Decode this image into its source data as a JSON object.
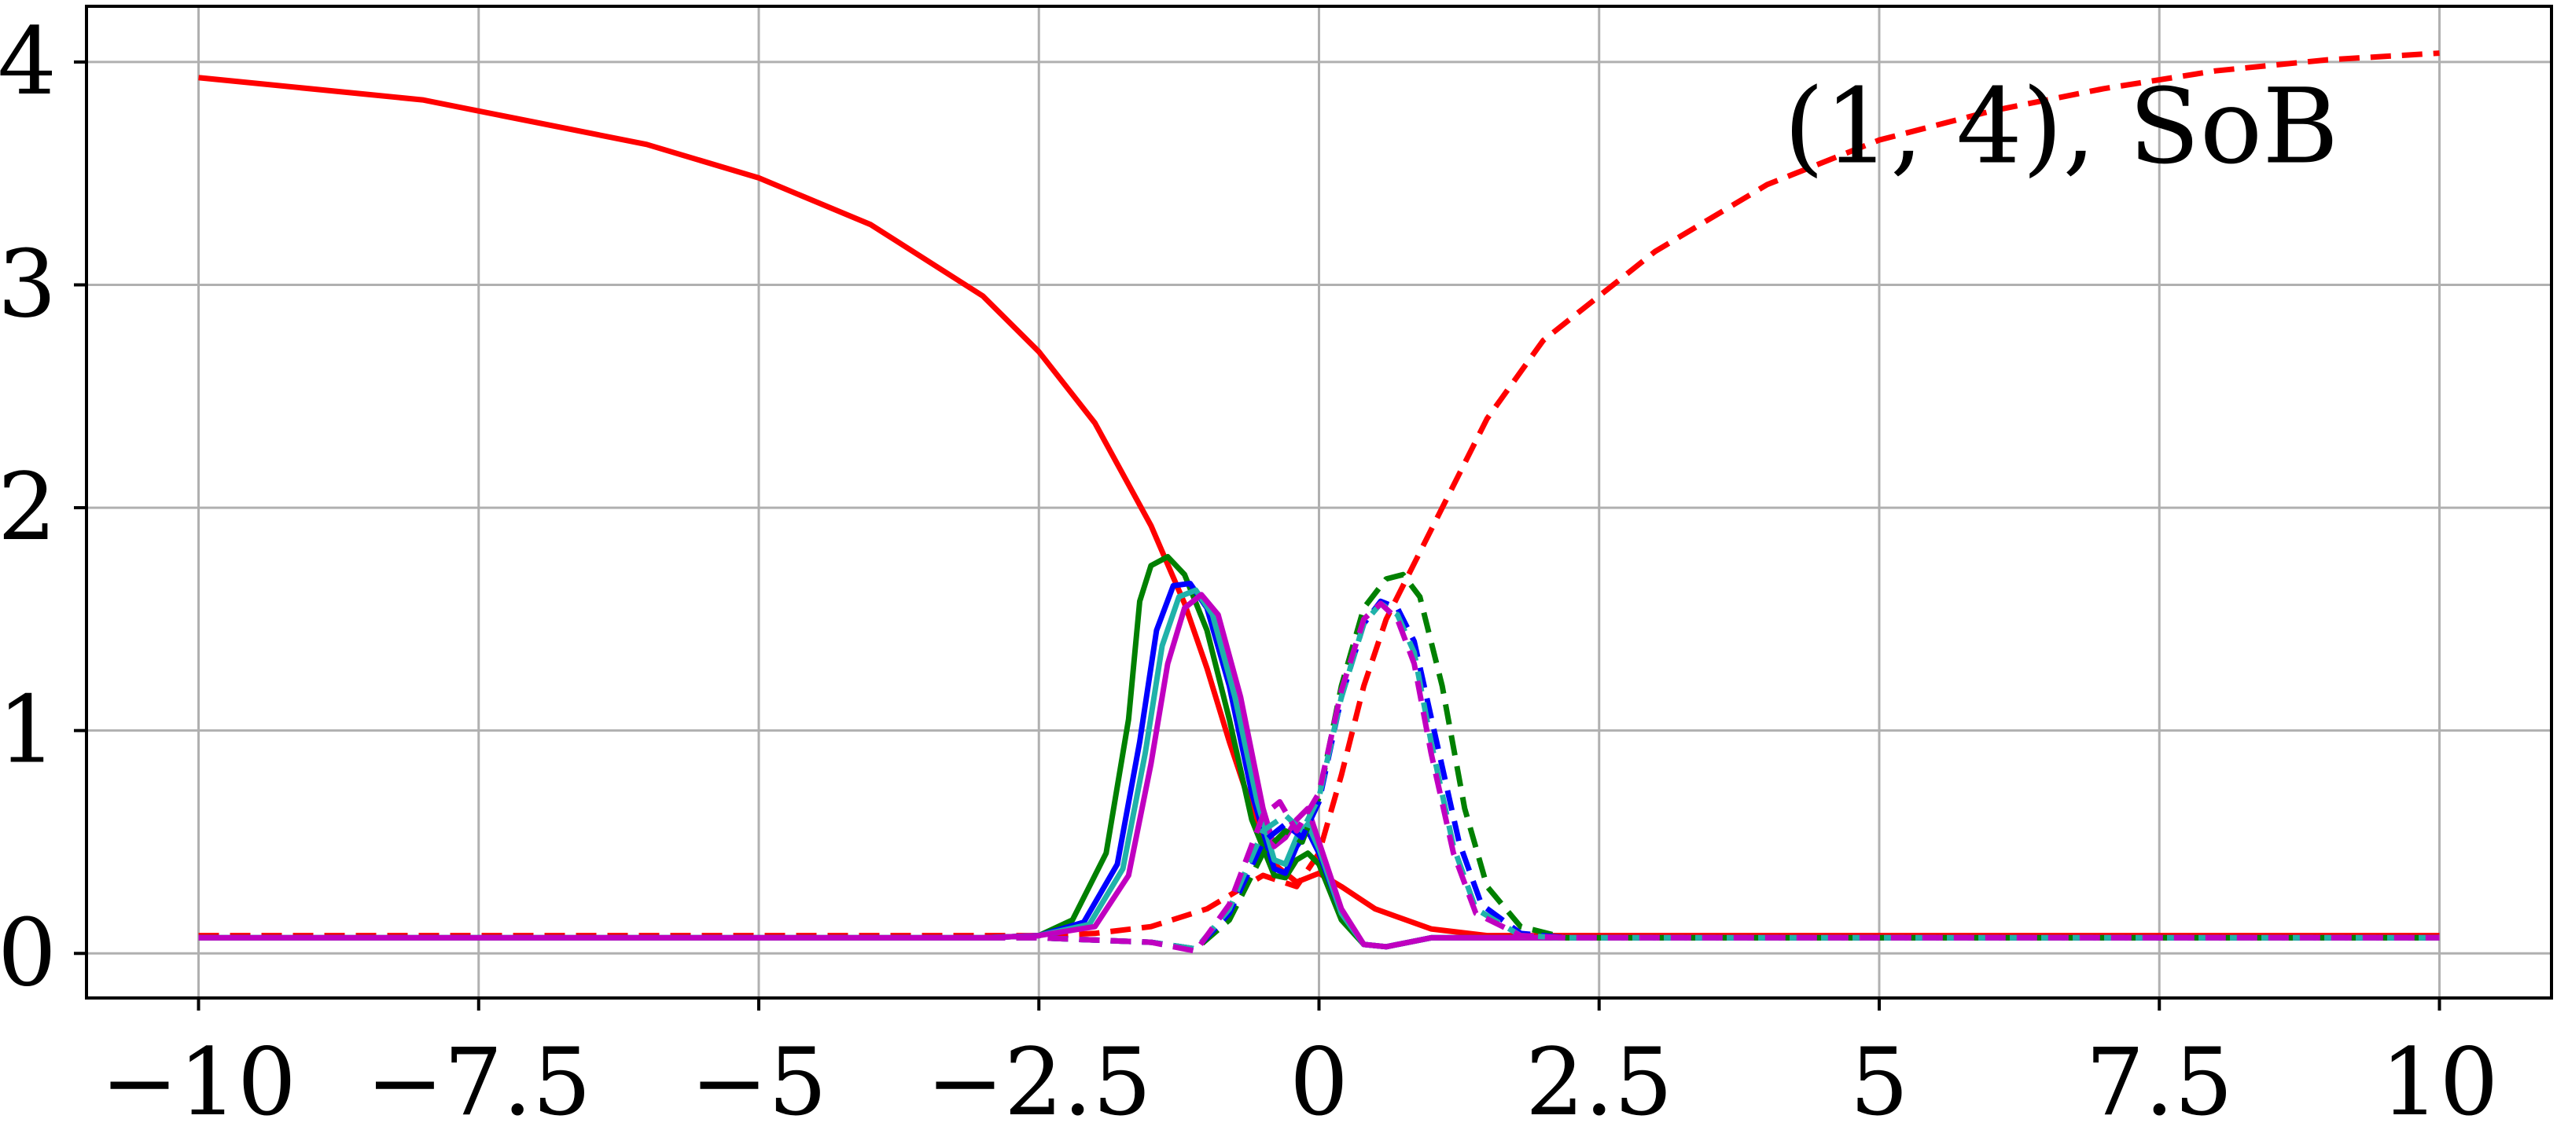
{
  "chart_data": {
    "type": "line",
    "title": "",
    "xlabel": "",
    "ylabel": "",
    "xlim": [
      -11,
      11
    ],
    "ylim": [
      -0.2,
      4.25
    ],
    "grid": true,
    "xticks": [
      -10,
      -7.5,
      -5,
      -2.5,
      0,
      2.5,
      5,
      7.5,
      10
    ],
    "xtick_labels": [
      "−10",
      "−7.5",
      "−5",
      "−2.5",
      "0",
      "2.5",
      "5",
      "7.5",
      "10"
    ],
    "yticks": [
      0,
      1,
      2,
      3,
      4
    ],
    "ytick_labels": [
      "0",
      "1",
      "2",
      "3",
      "4"
    ],
    "annotation": "(1, 4), SoB",
    "series": [
      {
        "color": "#ff0000",
        "style": "solid",
        "x": [
          -10,
          -8,
          -6,
          -5,
          -4,
          -3,
          -2.5,
          -2,
          -1.5,
          -1.2,
          -1,
          -0.8,
          -0.6,
          -0.4,
          -0.2,
          0,
          0.2,
          0.5,
          1,
          1.5,
          2,
          3,
          5,
          10
        ],
        "y": [
          3.93,
          3.83,
          3.63,
          3.48,
          3.27,
          2.95,
          2.7,
          2.38,
          1.92,
          1.57,
          1.28,
          0.95,
          0.65,
          0.4,
          0.32,
          0.36,
          0.3,
          0.2,
          0.11,
          0.08,
          0.08,
          0.08,
          0.08,
          0.08
        ]
      },
      {
        "color": "#ff0000",
        "style": "dashed",
        "x": [
          -10,
          -5,
          -3,
          -2.5,
          -2,
          -1.5,
          -1,
          -0.5,
          -0.2,
          0,
          0.2,
          0.4,
          0.6,
          1,
          1.5,
          2,
          2.5,
          3,
          4,
          5,
          6,
          7,
          8,
          9,
          10
        ],
        "y": [
          0.08,
          0.08,
          0.08,
          0.08,
          0.09,
          0.12,
          0.2,
          0.35,
          0.3,
          0.45,
          0.8,
          1.2,
          1.5,
          1.9,
          2.4,
          2.75,
          2.95,
          3.15,
          3.45,
          3.65,
          3.78,
          3.88,
          3.96,
          4.01,
          4.04
        ]
      },
      {
        "color": "#008000",
        "style": "solid",
        "x": [
          -10,
          -3,
          -2.5,
          -2.2,
          -1.9,
          -1.7,
          -1.6,
          -1.5,
          -1.35,
          -1.2,
          -1.0,
          -0.8,
          -0.6,
          -0.4,
          -0.3,
          -0.2,
          -0.1,
          0,
          0.2,
          0.4,
          0.6,
          1,
          2,
          10
        ],
        "y": [
          0.07,
          0.07,
          0.08,
          0.15,
          0.45,
          1.05,
          1.58,
          1.74,
          1.78,
          1.7,
          1.45,
          1.05,
          0.6,
          0.35,
          0.34,
          0.42,
          0.45,
          0.4,
          0.15,
          0.04,
          0.03,
          0.07,
          0.07,
          0.07
        ]
      },
      {
        "color": "#0000ff",
        "style": "solid",
        "x": [
          -10,
          -3,
          -2.5,
          -2.1,
          -1.8,
          -1.6,
          -1.45,
          -1.3,
          -1.15,
          -1.0,
          -0.8,
          -0.6,
          -0.4,
          -0.3,
          -0.2,
          -0.1,
          0,
          0.2,
          0.4,
          0.6,
          1,
          2,
          10
        ],
        "y": [
          0.07,
          0.07,
          0.08,
          0.14,
          0.4,
          0.95,
          1.45,
          1.65,
          1.66,
          1.55,
          1.2,
          0.72,
          0.38,
          0.36,
          0.48,
          0.55,
          0.45,
          0.18,
          0.04,
          0.03,
          0.07,
          0.07,
          0.07
        ]
      },
      {
        "color": "#20b2aa",
        "style": "solid",
        "x": [
          -10,
          -3,
          -2.5,
          -2.05,
          -1.75,
          -1.55,
          -1.4,
          -1.25,
          -1.1,
          -0.95,
          -0.75,
          -0.55,
          -0.4,
          -0.3,
          -0.2,
          -0.1,
          0,
          0.2,
          0.4,
          0.6,
          1,
          2,
          10
        ],
        "y": [
          0.07,
          0.07,
          0.08,
          0.13,
          0.38,
          0.9,
          1.38,
          1.6,
          1.63,
          1.52,
          1.15,
          0.68,
          0.42,
          0.4,
          0.52,
          0.58,
          0.47,
          0.18,
          0.04,
          0.03,
          0.07,
          0.07,
          0.07
        ]
      },
      {
        "color": "#c000c0",
        "style": "solid",
        "x": [
          -10,
          -3,
          -2.5,
          -2.0,
          -1.7,
          -1.5,
          -1.35,
          -1.2,
          -1.05,
          -0.9,
          -0.7,
          -0.5,
          -0.4,
          -0.3,
          -0.2,
          -0.1,
          0,
          0.2,
          0.4,
          0.6,
          1,
          2,
          10
        ],
        "y": [
          0.07,
          0.07,
          0.08,
          0.12,
          0.35,
          0.85,
          1.3,
          1.55,
          1.61,
          1.52,
          1.15,
          0.65,
          0.48,
          0.52,
          0.6,
          0.65,
          0.5,
          0.2,
          0.04,
          0.03,
          0.07,
          0.07,
          0.07
        ]
      },
      {
        "color": "#008000",
        "style": "dashed",
        "x": [
          -10,
          -2.5,
          -2,
          -1.5,
          -1.1,
          -0.8,
          -0.5,
          -0.3,
          -0.15,
          0,
          0.2,
          0.4,
          0.6,
          0.75,
          0.9,
          1.1,
          1.3,
          1.5,
          1.8,
          2.2,
          10
        ],
        "y": [
          0.07,
          0.07,
          0.06,
          0.05,
          0.02,
          0.15,
          0.45,
          0.55,
          0.5,
          0.7,
          1.2,
          1.55,
          1.68,
          1.7,
          1.6,
          1.2,
          0.65,
          0.3,
          0.12,
          0.07,
          0.07
        ]
      },
      {
        "color": "#0000ff",
        "style": "dashed",
        "x": [
          -10,
          -2.5,
          -2,
          -1.5,
          -1.1,
          -0.8,
          -0.5,
          -0.3,
          -0.15,
          0,
          0.2,
          0.4,
          0.55,
          0.7,
          0.85,
          1.05,
          1.25,
          1.45,
          1.8,
          2.2,
          10
        ],
        "y": [
          0.07,
          0.07,
          0.06,
          0.05,
          0.02,
          0.18,
          0.5,
          0.58,
          0.52,
          0.68,
          1.15,
          1.48,
          1.58,
          1.55,
          1.4,
          0.95,
          0.5,
          0.22,
          0.09,
          0.07,
          0.07
        ]
      },
      {
        "color": "#20b2aa",
        "style": "dashed",
        "x": [
          -10,
          -2.5,
          -2,
          -1.5,
          -1.1,
          -0.8,
          -0.5,
          -0.3,
          -0.15,
          0,
          0.2,
          0.4,
          0.55,
          0.7,
          0.85,
          1.0,
          1.2,
          1.4,
          1.8,
          2.2,
          10
        ],
        "y": [
          0.07,
          0.07,
          0.06,
          0.05,
          0.02,
          0.2,
          0.55,
          0.62,
          0.55,
          0.7,
          1.15,
          1.48,
          1.57,
          1.52,
          1.35,
          0.95,
          0.48,
          0.2,
          0.08,
          0.07,
          0.07
        ]
      },
      {
        "color": "#c000c0",
        "style": "dashed",
        "x": [
          -10,
          -2.5,
          -2,
          -1.5,
          -1.1,
          -0.8,
          -0.5,
          -0.35,
          -0.2,
          0,
          0.2,
          0.4,
          0.55,
          0.7,
          0.85,
          1.0,
          1.2,
          1.4,
          1.8,
          2.2,
          10
        ],
        "y": [
          0.07,
          0.07,
          0.06,
          0.05,
          0.01,
          0.22,
          0.62,
          0.68,
          0.55,
          0.72,
          1.18,
          1.5,
          1.57,
          1.5,
          1.3,
          0.9,
          0.45,
          0.18,
          0.08,
          0.07,
          0.07
        ]
      }
    ]
  }
}
